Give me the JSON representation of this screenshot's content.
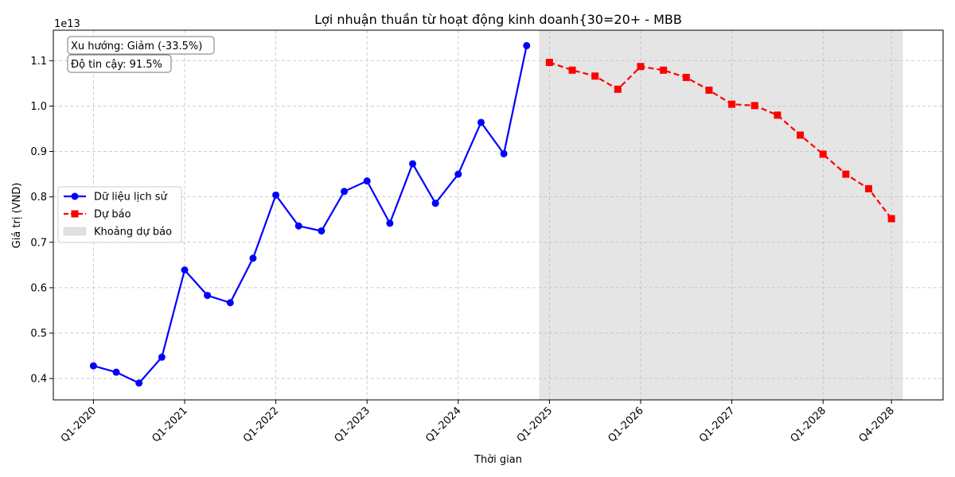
{
  "chart_data": {
    "type": "line",
    "title": "Lợi nhuận thuần từ hoạt động kinh doanh{30=20+ - MBB",
    "xlabel": "Thời gian",
    "ylabel": "Giá trị (VND)",
    "y_offset_label": "1e13",
    "y_scale_note": "values in units of 1e13 VND",
    "ylim": [
      0.353,
      1.167
    ],
    "yticks": [
      0.4,
      0.5,
      0.6,
      0.7,
      0.8,
      0.9,
      1.0,
      1.1
    ],
    "ytick_labels": [
      "0.4",
      "0.5",
      "0.6",
      "0.7",
      "0.8",
      "0.9",
      "1.0",
      "1.1"
    ],
    "xticks": [
      "Q1-2020",
      "Q1-2021",
      "Q1-2022",
      "Q1-2023",
      "Q1-2024",
      "Q1-2025",
      "Q1-2026",
      "Q1-2027",
      "Q1-2028",
      "Q4-2028"
    ],
    "grid": true,
    "legend_position": "center-left",
    "forecast_band": {
      "from": "Q4-2024/Q1-2025",
      "to": "Q4-2028"
    },
    "series": [
      {
        "name": "Dữ liệu lịch sử",
        "color": "#0000ff",
        "marker": "circle",
        "line_style": "solid",
        "x": [
          "Q1-2020",
          "Q2-2020",
          "Q3-2020",
          "Q4-2020",
          "Q1-2021",
          "Q2-2021",
          "Q3-2021",
          "Q4-2021",
          "Q1-2022",
          "Q2-2022",
          "Q3-2022",
          "Q4-2022",
          "Q1-2023",
          "Q2-2023",
          "Q3-2023",
          "Q4-2023",
          "Q1-2024",
          "Q2-2024",
          "Q3-2024",
          "Q4-2024"
        ],
        "values": [
          0.428,
          0.414,
          0.39,
          0.447,
          0.639,
          0.583,
          0.567,
          0.665,
          0.804,
          0.736,
          0.725,
          0.812,
          0.835,
          0.742,
          0.873,
          0.786,
          0.85,
          0.964,
          0.895,
          1.133
        ]
      },
      {
        "name": "Dự báo",
        "color": "#ff0000",
        "marker": "square",
        "line_style": "dashed",
        "x": [
          "Q1-2025",
          "Q2-2025",
          "Q3-2025",
          "Q4-2025",
          "Q1-2026",
          "Q2-2026",
          "Q3-2026",
          "Q4-2026",
          "Q1-2027",
          "Q2-2027",
          "Q3-2027",
          "Q4-2027",
          "Q1-2028",
          "Q2-2028",
          "Q3-2028",
          "Q4-2028"
        ],
        "values": [
          1.096,
          1.079,
          1.066,
          1.037,
          1.087,
          1.079,
          1.063,
          1.035,
          1.004,
          1.001,
          0.98,
          0.936,
          0.894,
          0.85,
          0.818,
          0.752
        ]
      }
    ],
    "legend": [
      {
        "label": "Dữ liệu lịch sử",
        "kind": "line-circle",
        "color": "#0000ff"
      },
      {
        "label": "Dự báo",
        "kind": "dashed-square",
        "color": "#ff0000"
      },
      {
        "label": "Khoảng dự báo",
        "kind": "patch",
        "color": "#e0e0e0"
      }
    ],
    "annotations": [
      "Xu hướng: Giảm (-33.5%)",
      "Độ tin cậy: 91.5%"
    ]
  }
}
